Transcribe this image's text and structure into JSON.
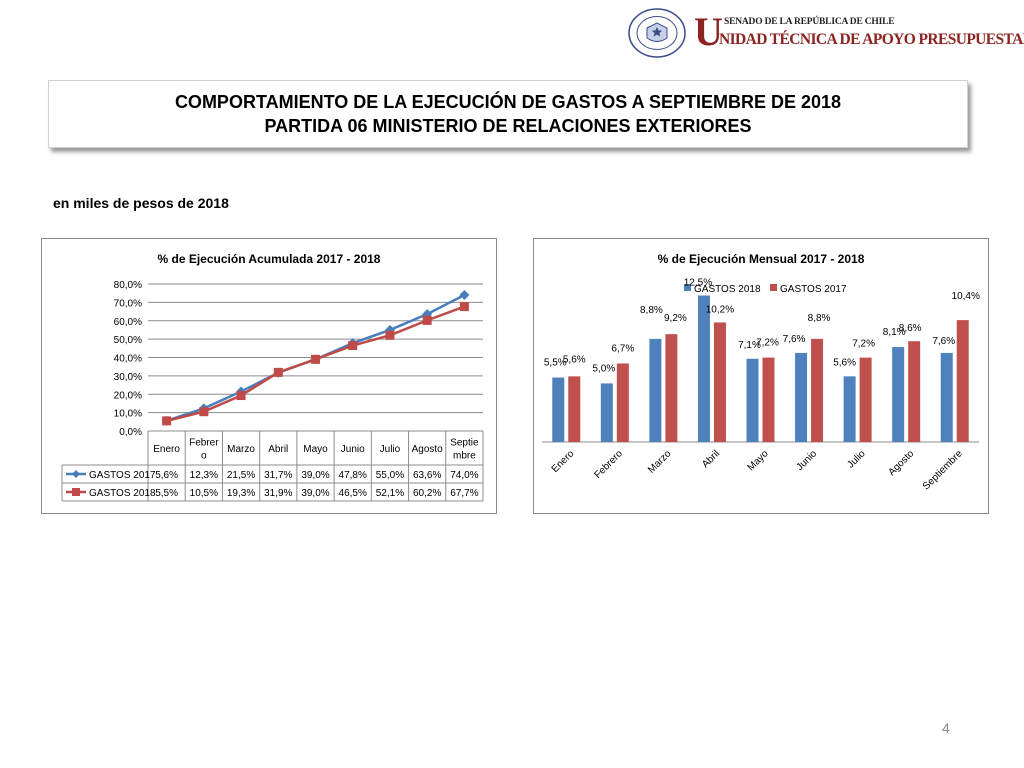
{
  "header": {
    "institution_top": "SENADO DE LA REPÚBLICA DE CHILE",
    "institution_initial": "U",
    "institution_rest": "NIDAD TÉCNICA DE APOYO PRESUPUESTARIO",
    "seal_text_top": "REPÚBLICA DE CHILE",
    "seal_text_bottom": "SENADO",
    "brand_color": "#8b2321"
  },
  "title": {
    "line1": "COMPORTAMIENTO DE LA EJECUCIÓN DE GASTOS A SEPTIEMBRE DE 2018",
    "line2": "PARTIDA 06 MINISTERIO DE RELACIONES EXTERIORES"
  },
  "subtitle": "en miles de pesos de 2018",
  "page_number": "4",
  "chart_data": [
    {
      "type": "line",
      "title": "% de Ejecución Acumulada 2017 - 2018",
      "categories": [
        "Enero",
        "Febrero",
        "Marzo",
        "Abril",
        "Mayo",
        "Junio",
        "Julio",
        "Agosto",
        "Septiembre"
      ],
      "category_table_labels": [
        [
          "Enero"
        ],
        [
          "Febrer",
          "o"
        ],
        [
          "Marzo"
        ],
        [
          "Abril"
        ],
        [
          "Mayo"
        ],
        [
          "Junio"
        ],
        [
          "Julio"
        ],
        [
          "Agosto"
        ],
        [
          "Septie",
          "mbre"
        ]
      ],
      "ylim": [
        0,
        80
      ],
      "yticks": [
        "0,0%",
        "10,0%",
        "20,0%",
        "30,0%",
        "40,0%",
        "50,0%",
        "60,0%",
        "70,0%",
        "80,0%"
      ],
      "grid": true,
      "legend": "data-table",
      "series": [
        {
          "name": "GASTOS 2017",
          "color": "#4a7ebb",
          "marker": "diamond",
          "values": [
            5.6,
            12.3,
            21.5,
            31.7,
            39.0,
            47.8,
            55.0,
            63.6,
            74.0
          ],
          "labels": [
            "5,6%",
            "12,3%",
            "21,5%",
            "31,7%",
            "39,0%",
            "47,8%",
            "55,0%",
            "63,6%",
            "74,0%"
          ]
        },
        {
          "name": "GASTOS 2018",
          "color": "#be4b48",
          "marker": "square",
          "values": [
            5.5,
            10.5,
            19.3,
            31.9,
            39.0,
            46.5,
            52.1,
            60.2,
            67.7
          ],
          "labels": [
            "5,5%",
            "10,5%",
            "19,3%",
            "31,9%",
            "39,0%",
            "46,5%",
            "52,1%",
            "60,2%",
            "67,7%"
          ]
        }
      ]
    },
    {
      "type": "bar",
      "title": "% de Ejecución Mensual 2017 - 2018",
      "categories": [
        "Enero",
        "Febrero",
        "Marzo",
        "Abril",
        "Mayo",
        "Junio",
        "Julio",
        "Agosto",
        "Septiembre"
      ],
      "ylim": [
        0,
        14
      ],
      "grid": false,
      "legend": "top",
      "series": [
        {
          "name": "GASTOS 2018",
          "color": "#4f81bd",
          "values": [
            5.5,
            5.0,
            8.8,
            12.5,
            7.1,
            7.6,
            5.6,
            8.1,
            7.6
          ],
          "labels": [
            "5,5%",
            "5,0%",
            "8,8%",
            "12,5%",
            "7,1%",
            "7,6%",
            "5,6%",
            "8,1%",
            "7,6%"
          ]
        },
        {
          "name": "GASTOS 2017",
          "color": "#c0504d",
          "values": [
            5.6,
            6.7,
            9.2,
            10.2,
            7.2,
            8.8,
            7.2,
            8.6,
            10.4
          ],
          "labels": [
            "5,6%",
            "6,7%",
            "9,2%",
            "10,2%",
            "7,2%",
            "8,8%",
            "7,2%",
            "8,6%",
            "10,4%"
          ]
        }
      ]
    }
  ]
}
